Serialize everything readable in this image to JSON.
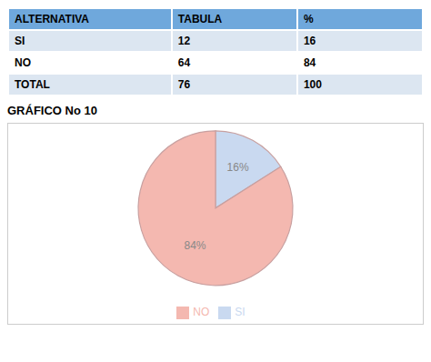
{
  "chart_data": {
    "type": "pie",
    "title": "GRÁFICO No 10",
    "table": {
      "headers": [
        "ALTERNATIVA",
        "TABULA",
        "%"
      ],
      "rows": [
        [
          "SI",
          "12",
          "16"
        ],
        [
          "NO",
          "64",
          "84"
        ],
        [
          "TOTAL",
          "76",
          "100"
        ]
      ]
    },
    "categories": [
      "SI",
      "NO"
    ],
    "values": [
      16,
      84
    ],
    "value_labels": [
      "16%",
      "84%"
    ],
    "colors": [
      "#c9d9f0",
      "#f4b8b0"
    ],
    "data_labels": true
  }
}
